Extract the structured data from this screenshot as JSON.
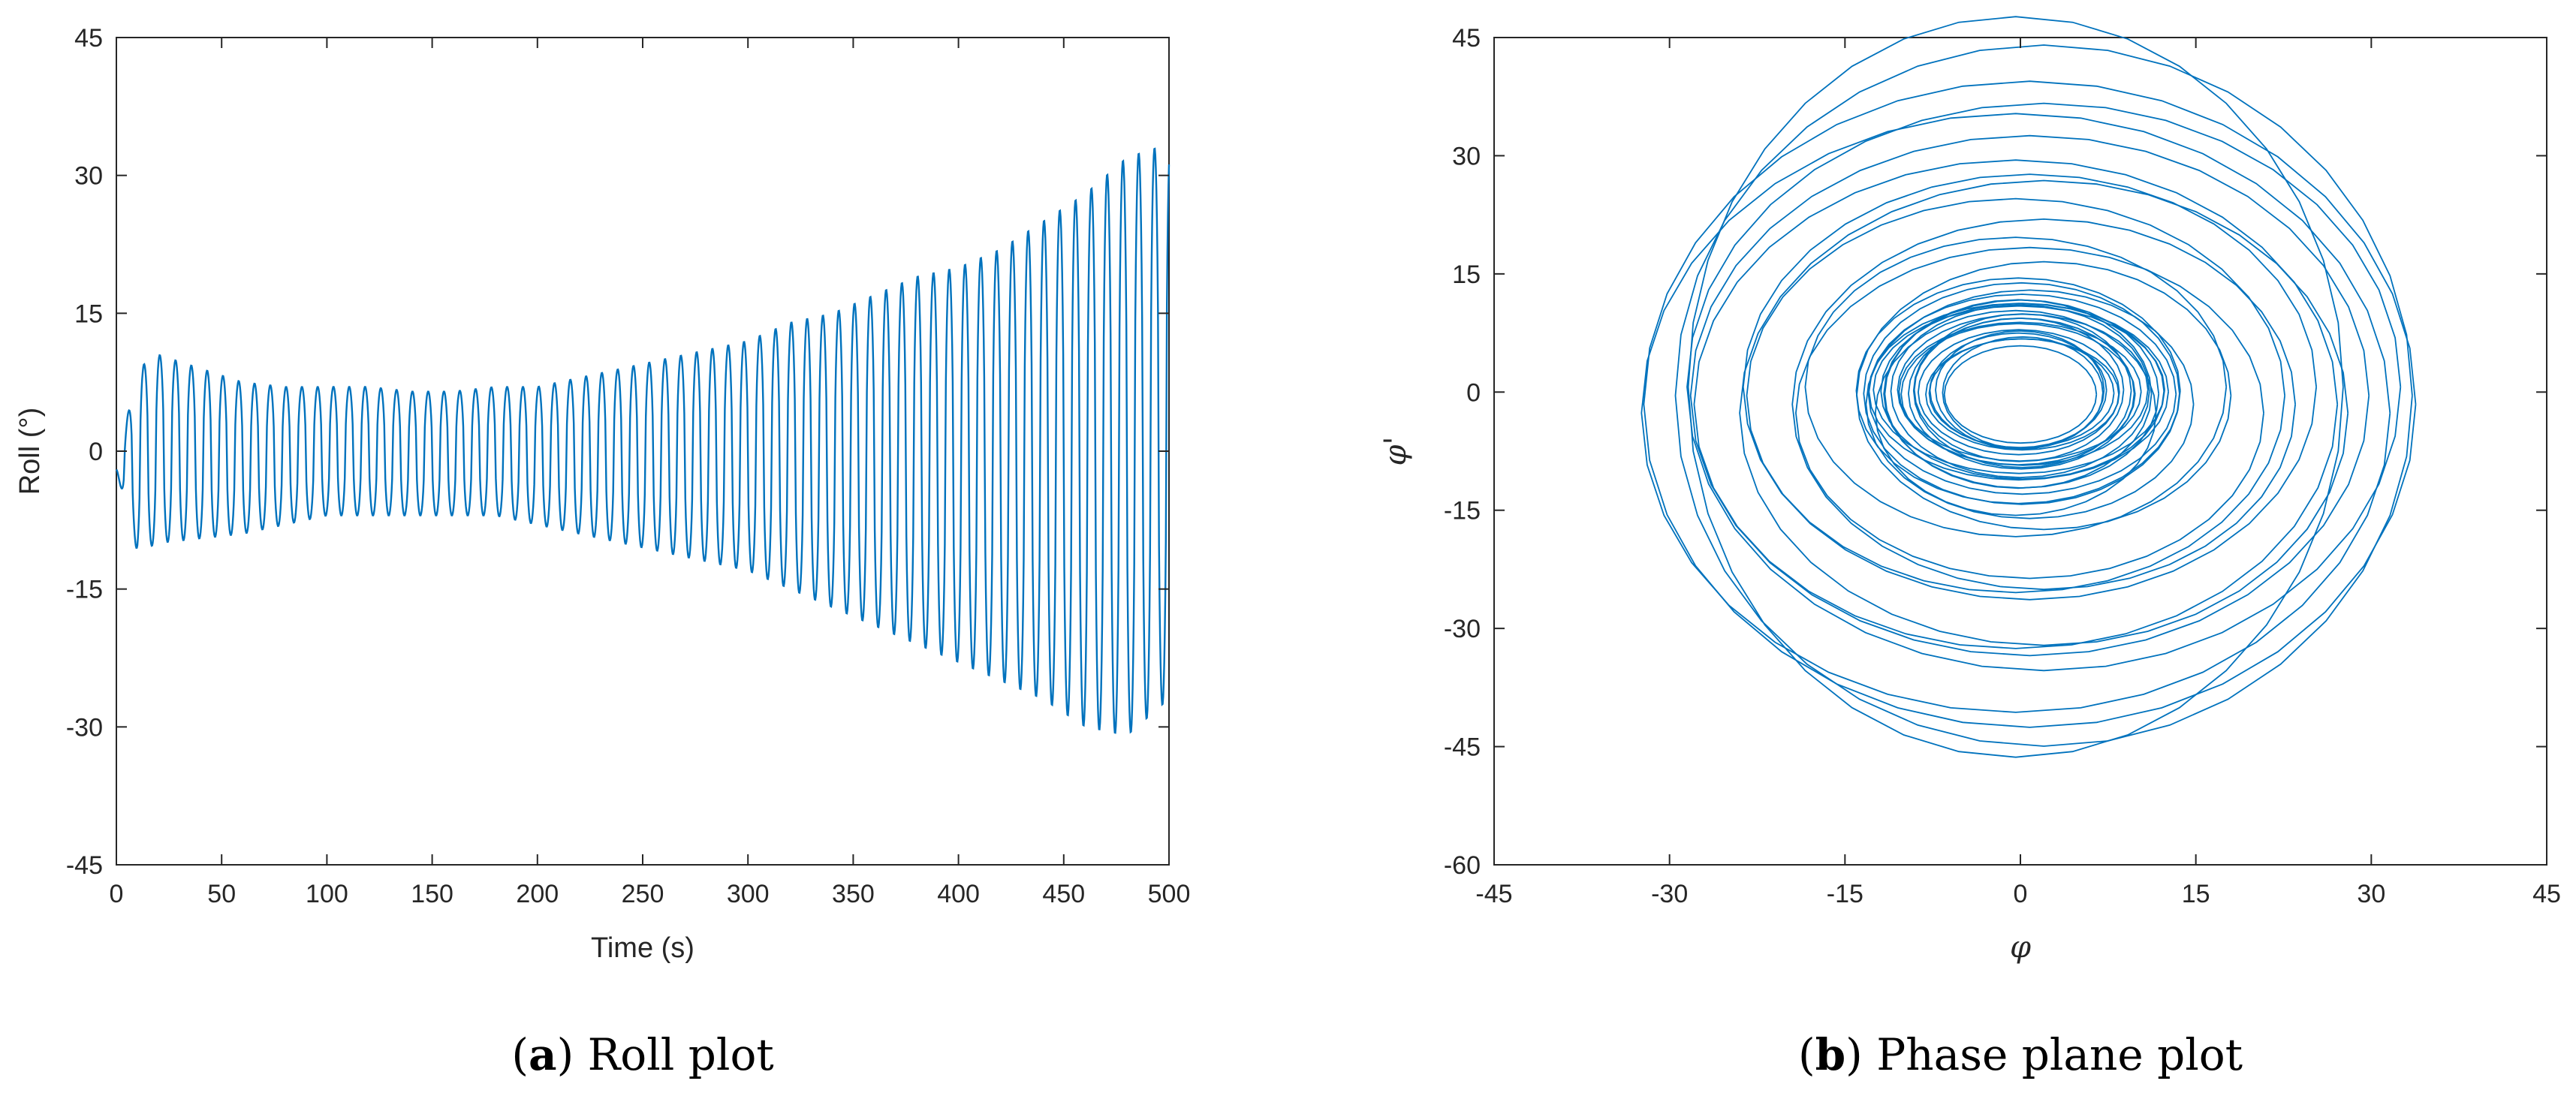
{
  "chart_data": [
    {
      "type": "line",
      "caption": {
        "letter": "a",
        "text": "Roll plot"
      },
      "xlabel": "Time (s)",
      "ylabel": "Roll (°)",
      "xlim": [
        0,
        500
      ],
      "ylim": [
        -45,
        45
      ],
      "xticks": [
        0,
        50,
        100,
        150,
        200,
        250,
        300,
        350,
        400,
        450,
        500
      ],
      "yticks": [
        -45,
        -30,
        -15,
        0,
        15,
        30,
        45
      ],
      "grid": false,
      "line_color": "#0072BD",
      "series": [
        {
          "period_s": 7.5,
          "envelope": {
            "t": [
              0,
              10,
              20,
              40,
              60,
              80,
              100,
              120,
              140,
              160,
              180,
              200,
              220,
              240,
              260,
              280,
              300,
              320,
              340,
              360,
              380,
              400,
              420,
              440,
              460,
              480,
              500
            ],
            "upper": [
              -2,
              9,
              10.5,
              9,
              7.5,
              7,
              7,
              7,
              6.5,
              6.5,
              7,
              7,
              8,
              9,
              10,
              11,
              12,
              14,
              15,
              17,
              19,
              20,
              22,
              25,
              28,
              32,
              33.5
            ],
            "lower": [
              -2,
              -11,
              -10,
              -9.5,
              -9,
              -8,
              -7,
              -7,
              -7,
              -7,
              -7,
              -8,
              -9,
              -10,
              -11,
              -12,
              -13,
              -15,
              -17,
              -19,
              -21,
              -23,
              -25,
              -27,
              -30,
              -31,
              -27
            ]
          }
        }
      ]
    },
    {
      "type": "line",
      "caption": {
        "letter": "b",
        "text": "Phase plane plot"
      },
      "xlabel": "φ",
      "ylabel": "φ'",
      "xlim": [
        -45,
        45
      ],
      "ylim": [
        -60,
        45
      ],
      "xticks": [
        -45,
        -30,
        -15,
        0,
        15,
        30,
        45
      ],
      "yticks": [
        -60,
        -45,
        -30,
        -15,
        0,
        15,
        30,
        45
      ],
      "grid": false,
      "line_color": "#0072BD",
      "series": [
        {
          "description_values": {
            "x_range": [
              -31,
              33.5
            ],
            "y_range": [
              -47,
              44.5
            ],
            "inner_hole_x": [
              -7,
              7
            ],
            "inner_hole_y": [
              -7,
              7
            ]
          }
        }
      ]
    }
  ]
}
